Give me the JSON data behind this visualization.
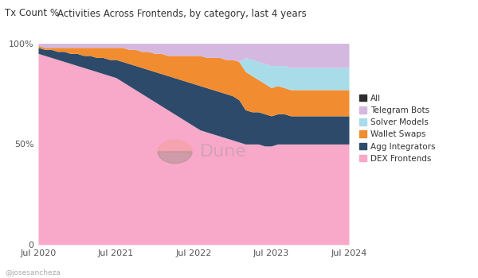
{
  "title": "Activities Across Frontends, by category, last 4 years",
  "ylabel": "Tx Count %",
  "background_color": "#ffffff",
  "watermark": "Dune",
  "attribution": "@josesancheza",
  "legend_entries": [
    "All",
    "Telegram Bots",
    "Solver Models",
    "Wallet Swaps",
    "Agg Integrators",
    "DEX Frontends"
  ],
  "colors": {
    "All": "#2d2d2d",
    "Telegram Bots": "#d4b8e0",
    "Solver Models": "#a8dce8",
    "Wallet Swaps": "#f28c30",
    "Agg Integrators": "#2d4a6a",
    "DEX Frontends": "#f8a8c8"
  },
  "x_labels": [
    "Jul 2020",
    "Jul 2021",
    "Jul 2022",
    "Jul 2023",
    "Jul 2024"
  ],
  "n_points": 49,
  "DEX_Frontends": [
    95,
    94,
    93,
    92,
    91,
    90,
    89,
    88,
    87,
    86,
    85,
    84,
    83,
    81,
    79,
    77,
    75,
    73,
    71,
    69,
    67,
    65,
    63,
    61,
    59,
    57,
    56,
    55,
    54,
    53,
    52,
    51,
    50,
    50,
    50,
    49,
    49,
    50,
    50,
    50,
    50,
    50,
    50,
    50,
    50,
    50,
    50,
    50,
    50
  ],
  "Agg_Integrators": [
    3,
    3,
    4,
    4,
    5,
    5,
    6,
    6,
    7,
    7,
    8,
    8,
    9,
    10,
    11,
    12,
    13,
    14,
    15,
    16,
    17,
    18,
    19,
    20,
    21,
    22,
    22,
    22,
    22,
    22,
    22,
    21,
    17,
    16,
    16,
    16,
    15,
    15,
    15,
    14,
    14,
    14,
    14,
    14,
    14,
    14,
    14,
    14,
    14
  ],
  "Wallet_Swaps": [
    1,
    1,
    1,
    2,
    2,
    3,
    3,
    4,
    4,
    5,
    5,
    6,
    6,
    7,
    7,
    8,
    8,
    9,
    9,
    10,
    10,
    11,
    12,
    13,
    14,
    15,
    15,
    16,
    17,
    17,
    18,
    19,
    19,
    18,
    16,
    15,
    14,
    14,
    13,
    13,
    13,
    13,
    13,
    13,
    13,
    13,
    13,
    13,
    13
  ],
  "Solver_Models": [
    0,
    0,
    0,
    0,
    0,
    0,
    0,
    0,
    0,
    0,
    0,
    0,
    0,
    0,
    0,
    0,
    0,
    0,
    0,
    0,
    0,
    0,
    0,
    0,
    0,
    0,
    0,
    0,
    0,
    0,
    0,
    0,
    7,
    8,
    9,
    10,
    11,
    10,
    11,
    11,
    11,
    11,
    11,
    11,
    11,
    11,
    11,
    11,
    11
  ],
  "Telegram_Bots": [
    1,
    2,
    2,
    2,
    2,
    2,
    2,
    2,
    2,
    2,
    2,
    2,
    2,
    2,
    3,
    3,
    4,
    4,
    5,
    5,
    6,
    6,
    6,
    6,
    6,
    6,
    7,
    7,
    7,
    8,
    8,
    9,
    7,
    8,
    9,
    10,
    11,
    11,
    11,
    12,
    12,
    12,
    12,
    12,
    12,
    12,
    12,
    12,
    12
  ]
}
